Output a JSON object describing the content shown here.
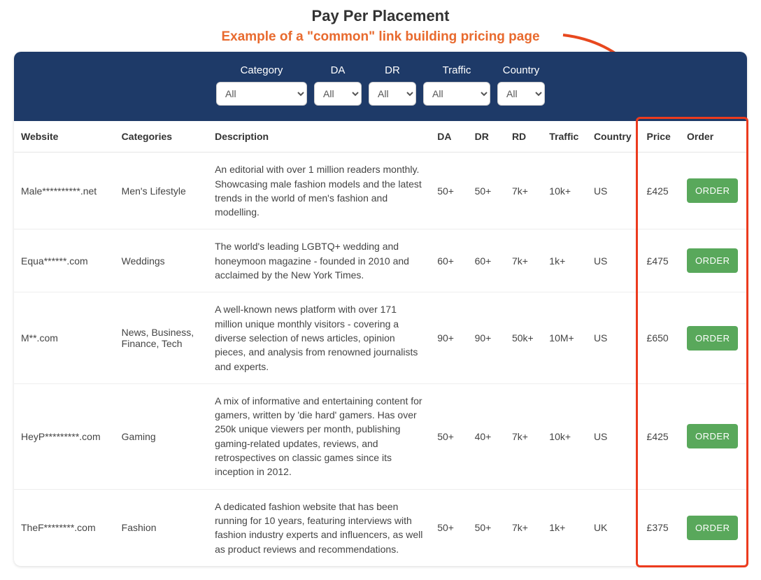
{
  "header": {
    "title": "Pay Per Placement",
    "subtitle": "Example of a \"common\" link building pricing page",
    "subtitle_color": "#e86a2e",
    "arrow_color": "#e8481e"
  },
  "filters": {
    "bar_bg": "#1e3a68",
    "items": [
      {
        "label": "Category",
        "value": "All",
        "width_class": "w-cat"
      },
      {
        "label": "DA",
        "value": "All",
        "width_class": "w-sm"
      },
      {
        "label": "DR",
        "value": "All",
        "width_class": "w-sm"
      },
      {
        "label": "Traffic",
        "value": "All",
        "width_class": "w-tr"
      },
      {
        "label": "Country",
        "value": "All",
        "width_class": "w-co"
      }
    ]
  },
  "table": {
    "columns": [
      "Website",
      "Categories",
      "Description",
      "DA",
      "DR",
      "RD",
      "Traffic",
      "Country",
      "Price",
      "Order"
    ],
    "order_button_label": "ORDER",
    "order_button_bg": "#59a85b",
    "rows": [
      {
        "website": "Male**********.net",
        "categories": "Men's Lifestyle",
        "description": "An editorial with over 1 million readers monthly. Showcasing male fashion models and the latest trends in the world of men's fashion and modelling.",
        "da": "50+",
        "dr": "50+",
        "rd": "7k+",
        "traffic": "10k+",
        "country": "US",
        "price": "£425"
      },
      {
        "website": "Equa******.com",
        "categories": "Weddings",
        "description": "The world's leading LGBTQ+ wedding and honeymoon magazine - founded in 2010 and acclaimed by the New York Times.",
        "da": "60+",
        "dr": "60+",
        "rd": "7k+",
        "traffic": "1k+",
        "country": "US",
        "price": "£475"
      },
      {
        "website": "M**.com",
        "categories": "News, Business, Finance, Tech",
        "description": "A well-known news platform with over 171 million unique monthly visitors - covering a diverse selection of news articles, opinion pieces, and analysis from renowned journalists and experts.",
        "da": "90+",
        "dr": "90+",
        "rd": "50k+",
        "traffic": "10M+",
        "country": "US",
        "price": "£650"
      },
      {
        "website": "HeyP*********.com",
        "categories": "Gaming",
        "description": "A mix of informative and entertaining content for gamers, written by 'die hard' gamers. Has over 250k unique viewers per month, publishing gaming-related updates, reviews, and retrospectives on classic games since its inception in 2012.",
        "da": "50+",
        "dr": "40+",
        "rd": "7k+",
        "traffic": "10k+",
        "country": "US",
        "price": "£425"
      },
      {
        "website": "TheF********.com",
        "categories": "Fashion",
        "description": "A dedicated fashion website that has been running for 10 years, featuring interviews with fashion industry experts and influencers, as well as product reviews and recommendations.",
        "da": "50+",
        "dr": "50+",
        "rd": "7k+",
        "traffic": "1k+",
        "country": "UK",
        "price": "£375"
      }
    ]
  },
  "highlight": {
    "border_color": "#ec3b1e"
  }
}
